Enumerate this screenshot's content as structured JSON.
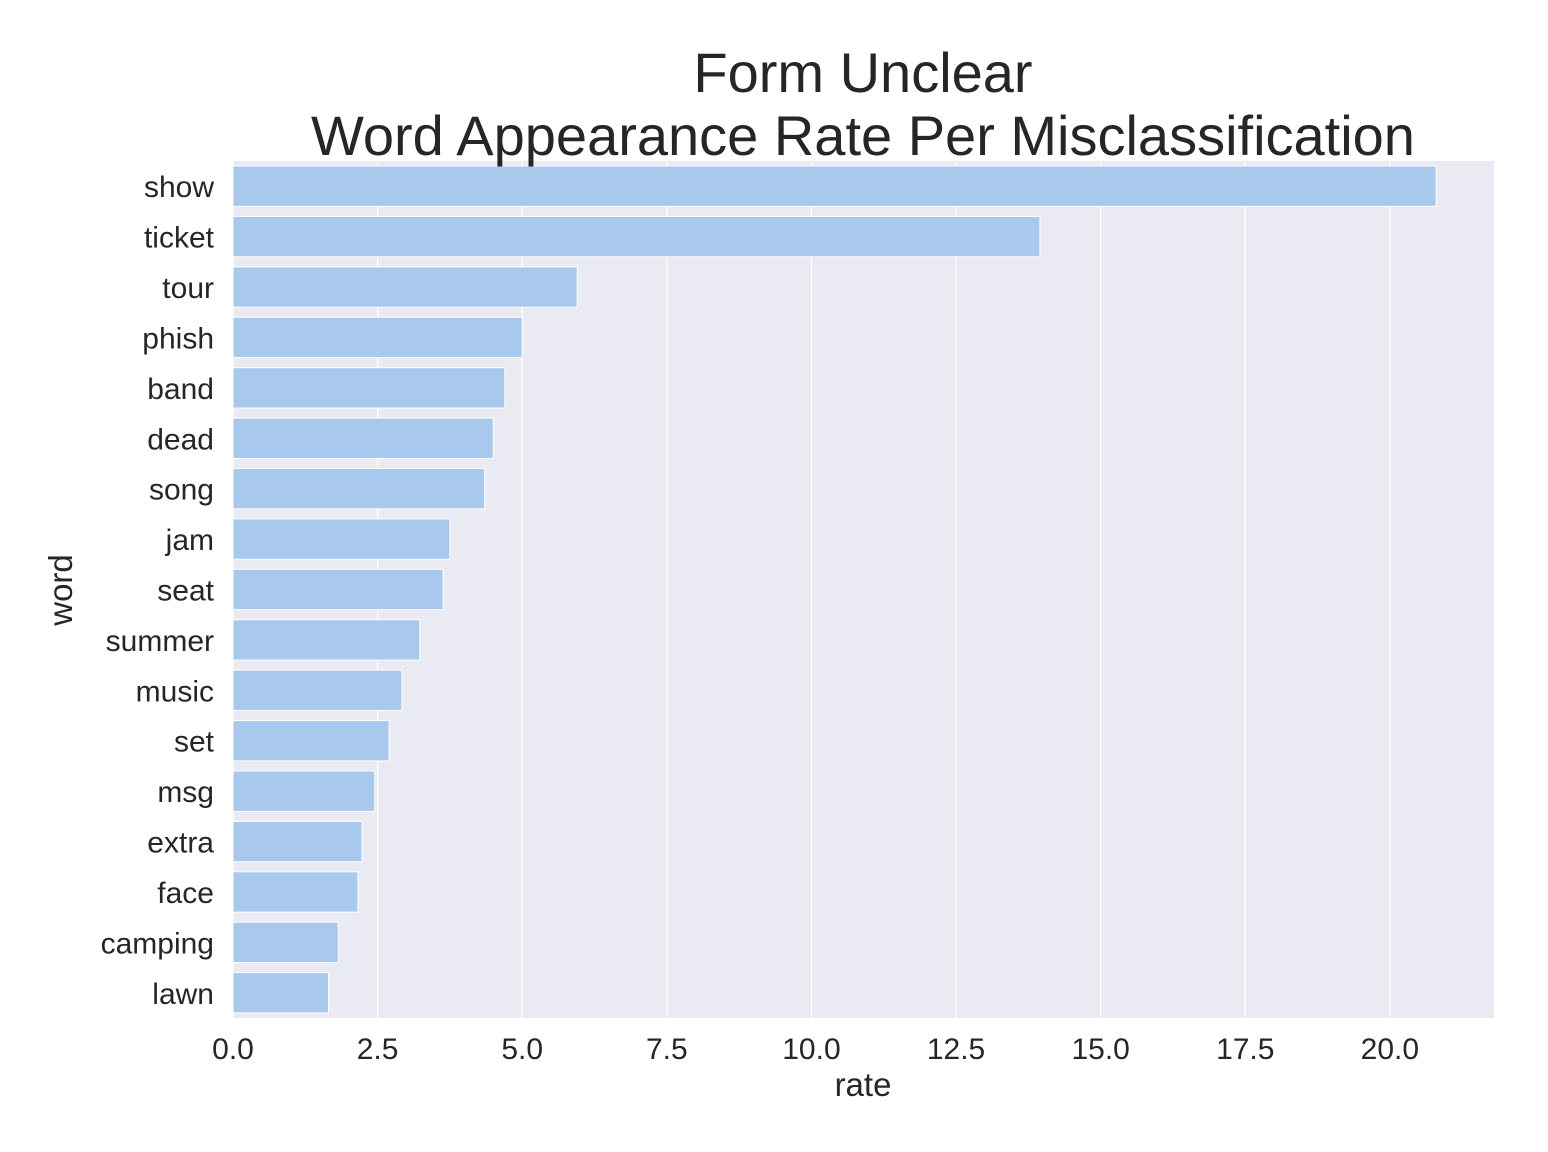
{
  "chart_data": {
    "type": "bar",
    "orientation": "horizontal",
    "title_lines": [
      "Form Unclear",
      "Word Appearance Rate Per Misclassification"
    ],
    "xlabel": "rate",
    "ylabel": "word",
    "categories": [
      "show",
      "ticket",
      "tour",
      "phish",
      "band",
      "dead",
      "song",
      "jam",
      "seat",
      "summer",
      "music",
      "set",
      "msg",
      "extra",
      "face",
      "camping",
      "lawn"
    ],
    "values": [
      20.8,
      13.95,
      5.95,
      5.0,
      4.7,
      4.5,
      4.35,
      3.75,
      3.63,
      3.23,
      2.92,
      2.7,
      2.45,
      2.23,
      2.16,
      1.82,
      1.65
    ],
    "xlim": [
      0,
      21.8
    ],
    "xticks": [
      0,
      2.5,
      5,
      7.5,
      10,
      12.5,
      15,
      17.5,
      20
    ],
    "xtick_labels": [
      "0.0",
      "2.5",
      "5.0",
      "7.5",
      "10.0",
      "12.5",
      "15.0",
      "17.5",
      "20.0"
    ],
    "grid": "vertical",
    "legend": "none",
    "colors": {
      "bar": "#a8c8ed",
      "plot_background": "#eaeaf2",
      "grid": "#ffffff",
      "text": "#262626"
    }
  }
}
